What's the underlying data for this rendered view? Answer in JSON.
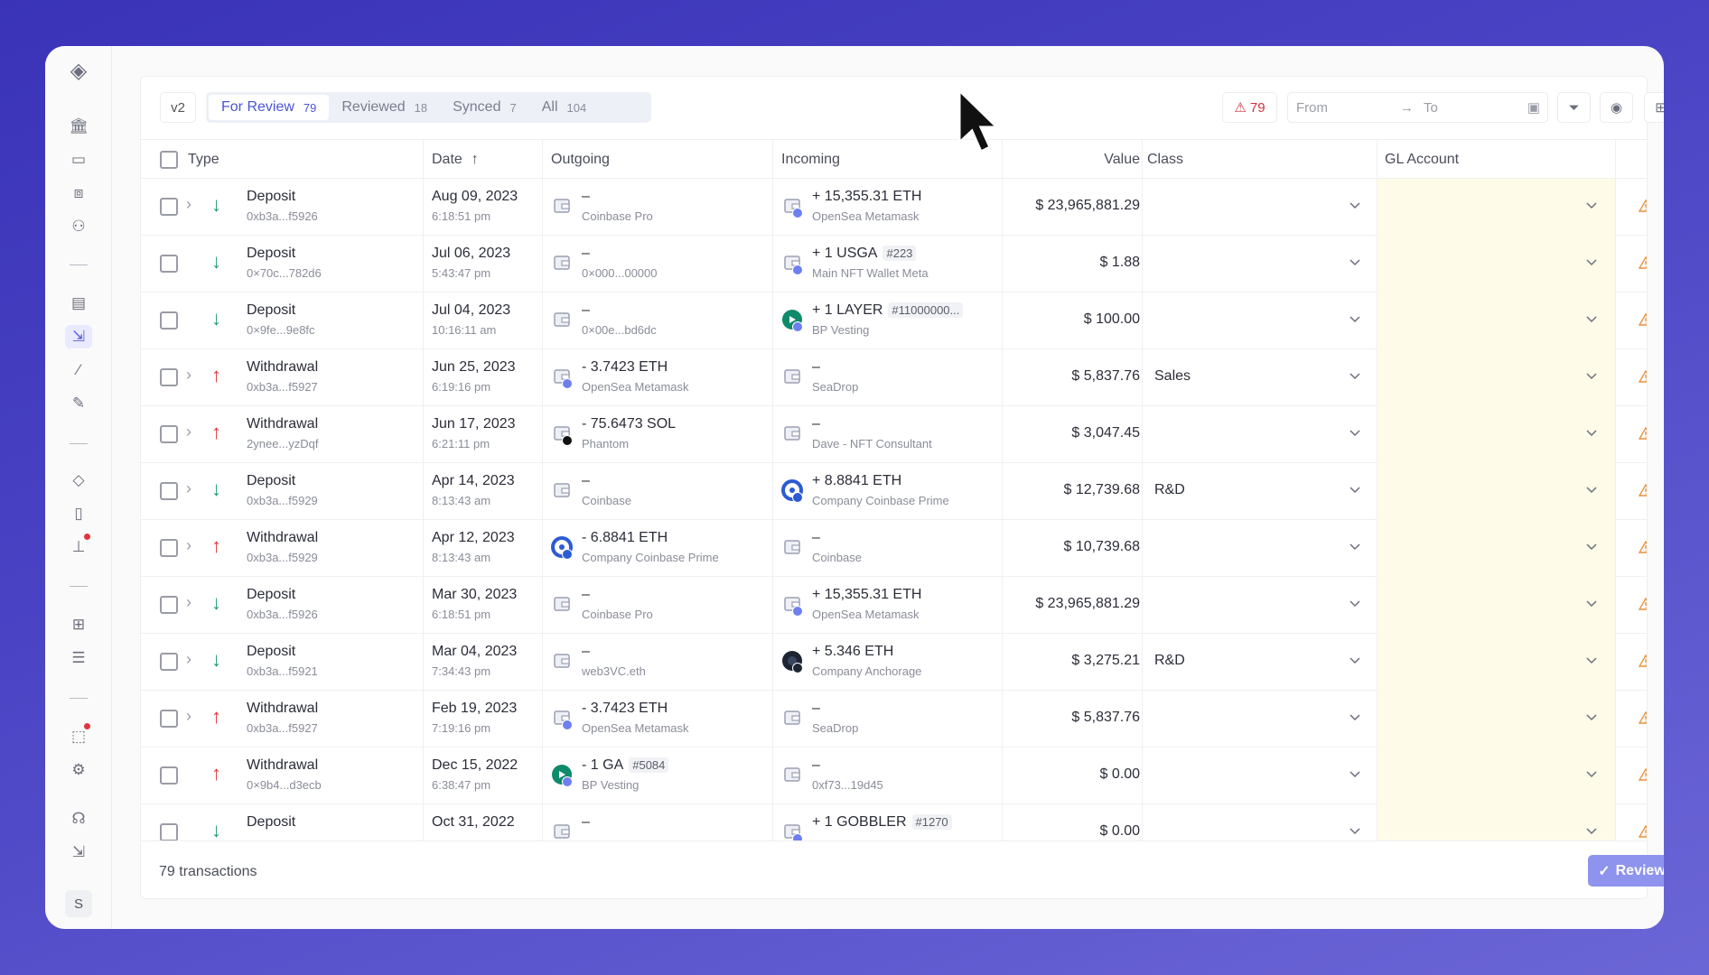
{
  "sidebar": {
    "avatar_letter": "S",
    "active_item": "transactions"
  },
  "toolbar": {
    "version": "v2",
    "tabs": [
      {
        "label": "For Review",
        "count": "79",
        "active": true
      },
      {
        "label": "Reviewed",
        "count": "18"
      },
      {
        "label": "Synced",
        "count": "7"
      },
      {
        "label": "All",
        "count": "104"
      }
    ],
    "warning_count": "79",
    "from_placeholder": "From",
    "to_placeholder": "To"
  },
  "columns": {
    "type": "Type",
    "date": "Date",
    "outgoing": "Outgoing",
    "incoming": "Incoming",
    "value": "Value",
    "class": "Class",
    "gl_account": "GL Account"
  },
  "rows": [
    {
      "type": "Deposit",
      "dir": "in",
      "hash": "0xb3a...f5926",
      "expand": true,
      "date": "Aug 09, 2023",
      "time": "6:18:51 pm",
      "out": {
        "amount": "–",
        "name": "Coinbase Pro",
        "icon": "wallet"
      },
      "in": {
        "amount": "+ 15,355.31 ETH",
        "name": "OpenSea Metamask",
        "icon": "wallet",
        "badge": "eth"
      },
      "value": "$ 23,965,881.29",
      "class": ""
    },
    {
      "type": "Deposit",
      "dir": "in",
      "hash": "0×70c...782d6",
      "expand": false,
      "date": "Jul 06, 2023",
      "time": "5:43:47 pm",
      "out": {
        "amount": "–",
        "name": "0×000...00000",
        "icon": "wallet"
      },
      "in": {
        "amount": "+ 1 USGA",
        "tag": "#223",
        "name": "Main NFT Wallet Meta",
        "icon": "wallet",
        "badge": "eth"
      },
      "value": "$ 1.88",
      "class": ""
    },
    {
      "type": "Deposit",
      "dir": "in",
      "hash": "0×9fe...9e8fc",
      "expand": false,
      "date": "Jul 04, 2023",
      "time": "10:16:11 am",
      "out": {
        "amount": "–",
        "name": "0×00e...bd6dc",
        "icon": "wallet"
      },
      "in": {
        "amount": "+ 1 LAYER",
        "tag": "#11000000...",
        "name": "BP Vesting",
        "icon": "bp",
        "badge": "eth"
      },
      "value": "$ 100.00",
      "class": ""
    },
    {
      "type": "Withdrawal",
      "dir": "out",
      "hash": "0xb3a...f5927",
      "expand": true,
      "date": "Jun 25, 2023",
      "time": "6:19:16 pm",
      "out": {
        "amount": "- 3.7423 ETH",
        "name": "OpenSea Metamask",
        "icon": "wallet",
        "badge": "eth"
      },
      "in": {
        "amount": "–",
        "name": "SeaDrop",
        "icon": "wallet"
      },
      "value": "$ 5,837.76",
      "class": "Sales"
    },
    {
      "type": "Withdrawal",
      "dir": "out",
      "hash": "2ynee...yzDqf",
      "expand": true,
      "date": "Jun 17, 2023",
      "time": "6:21:11 pm",
      "out": {
        "amount": "- 75.6473 SOL",
        "name": "Phantom",
        "icon": "wallet",
        "badge": "sol"
      },
      "in": {
        "amount": "–",
        "name": "Dave - NFT Consultant",
        "icon": "wallet"
      },
      "value": "$ 3,047.45",
      "class": ""
    },
    {
      "type": "Deposit",
      "dir": "in",
      "hash": "0xb3a...f5929",
      "expand": true,
      "date": "Apr 14, 2023",
      "time": "8:13:43 am",
      "out": {
        "amount": "–",
        "name": "Coinbase",
        "icon": "wallet"
      },
      "in": {
        "amount": "+ 8.8841 ETH",
        "name": "Company Coinbase Prime",
        "icon": "coinbase",
        "badge": "coinbase"
      },
      "value": "$ 12,739.68",
      "class": "R&D"
    },
    {
      "type": "Withdrawal",
      "dir": "out",
      "hash": "0xb3a...f5929",
      "expand": true,
      "date": "Apr 12, 2023",
      "time": "8:13:43 am",
      "out": {
        "amount": "- 6.8841 ETH",
        "name": "Company Coinbase Prime",
        "icon": "coinbase",
        "badge": "coinbase"
      },
      "in": {
        "amount": "–",
        "name": "Coinbase",
        "icon": "wallet"
      },
      "value": "$ 10,739.68",
      "class": ""
    },
    {
      "type": "Deposit",
      "dir": "in",
      "hash": "0xb3a...f5926",
      "expand": true,
      "date": "Mar 30, 2023",
      "time": "6:18:51 pm",
      "out": {
        "amount": "–",
        "name": "Coinbase Pro",
        "icon": "wallet"
      },
      "in": {
        "amount": "+ 15,355.31 ETH",
        "name": "OpenSea Metamask",
        "icon": "wallet",
        "badge": "eth"
      },
      "value": "$ 23,965,881.29",
      "class": ""
    },
    {
      "type": "Deposit",
      "dir": "in",
      "hash": "0xb3a...f5921",
      "expand": true,
      "date": "Mar 04, 2023",
      "time": "7:34:43 pm",
      "out": {
        "amount": "–",
        "name": "web3VC.eth",
        "icon": "wallet"
      },
      "in": {
        "amount": "+ 5.346 ETH",
        "name": "Company Anchorage",
        "icon": "anchorage",
        "badge": "anchorage"
      },
      "value": "$ 3,275.21",
      "class": "R&D"
    },
    {
      "type": "Withdrawal",
      "dir": "out",
      "hash": "0xb3a...f5927",
      "expand": true,
      "date": "Feb 19, 2023",
      "time": "7:19:16 pm",
      "out": {
        "amount": "- 3.7423 ETH",
        "name": "OpenSea Metamask",
        "icon": "wallet",
        "badge": "eth"
      },
      "in": {
        "amount": "–",
        "name": "SeaDrop",
        "icon": "wallet"
      },
      "value": "$ 5,837.76",
      "class": ""
    },
    {
      "type": "Withdrawal",
      "dir": "out",
      "hash": "0×9b4...d3ecb",
      "expand": false,
      "date": "Dec 15, 2022",
      "time": "6:38:47 pm",
      "out": {
        "amount": "- 1 GA",
        "tag": "#5084",
        "name": "BP Vesting",
        "icon": "bp",
        "badge": "eth"
      },
      "in": {
        "amount": "–",
        "name": "0xf73...19d45",
        "icon": "wallet"
      },
      "value": "$ 0.00",
      "class": ""
    },
    {
      "type": "Deposit",
      "dir": "in",
      "hash": "",
      "expand": false,
      "date": "Oct 31, 2022",
      "time": "",
      "out": {
        "amount": "–",
        "name": "",
        "icon": "wallet"
      },
      "in": {
        "amount": "+ 1 GOBBLER",
        "tag": "#1270",
        "name": "",
        "icon": "wallet",
        "badge": "eth"
      },
      "value": "$ 0.00",
      "class": ""
    }
  ],
  "footer": {
    "count_text": "79 transactions",
    "review_label": "Review"
  },
  "colors": {
    "accent": "#4b55d6",
    "deposit": "#1f9d6b",
    "withdrawal": "#e0343f",
    "warning": "#e8913a",
    "gl_highlight": "#fffbe9",
    "review_button": "#8e93ee"
  }
}
